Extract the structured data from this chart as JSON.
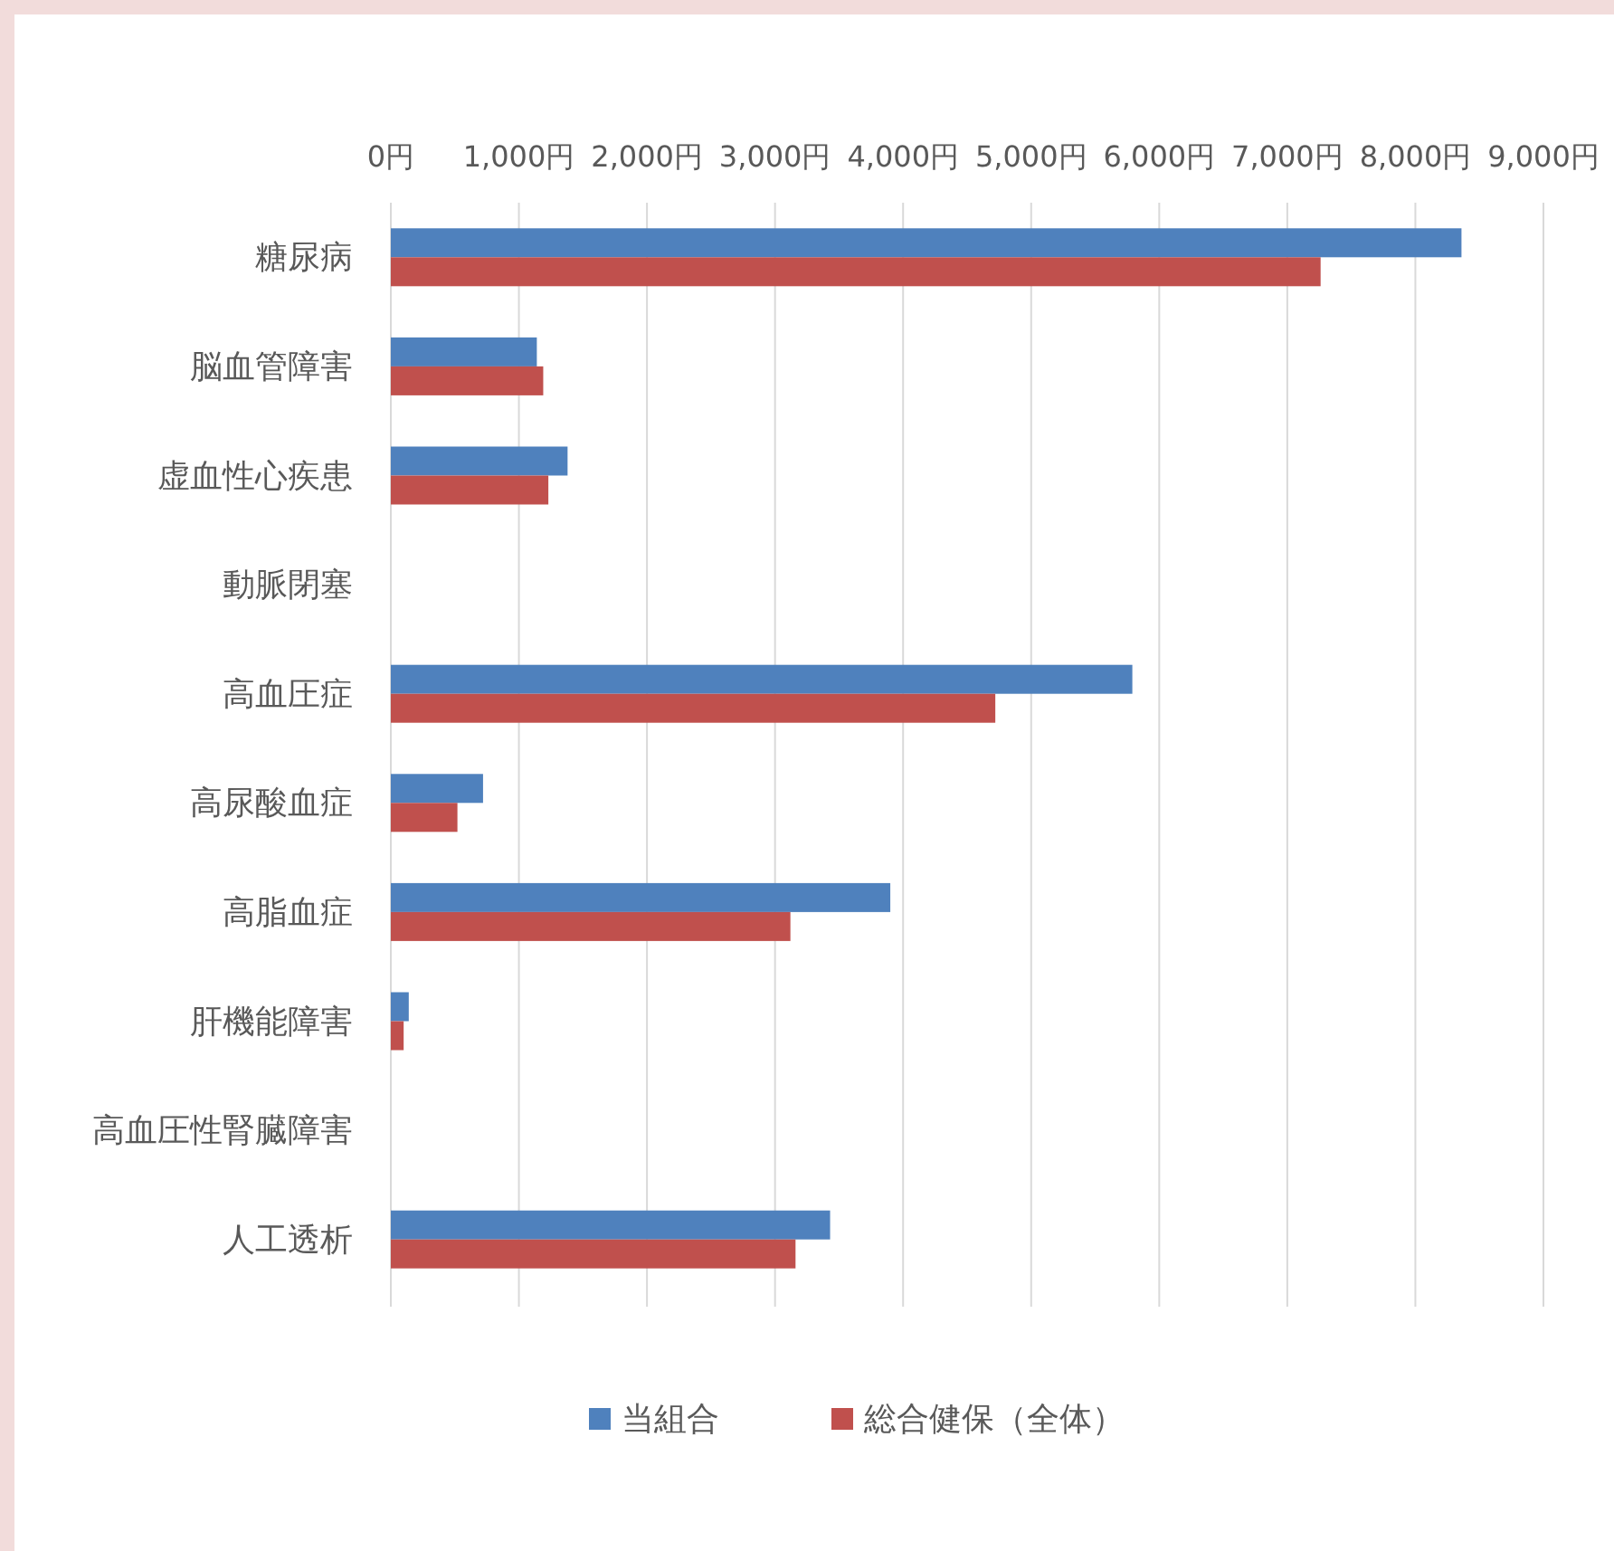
{
  "chart_data": {
    "type": "bar",
    "orientation": "horizontal",
    "categories": [
      "糖尿病",
      "脳血管障害",
      "虚血性心疾患",
      "動脈閉塞",
      "高血圧症",
      "高尿酸血症",
      "高脂血症",
      "肝機能障害",
      "高血圧性腎臓障害",
      "人工透析"
    ],
    "series": [
      {
        "name": "当組合",
        "color": "#4f81bd",
        "values": [
          8360,
          1140,
          1380,
          0,
          5790,
          720,
          3900,
          140,
          0,
          3430
        ]
      },
      {
        "name": "総合健保（全体）",
        "color": "#c0504d",
        "values": [
          7260,
          1190,
          1230,
          0,
          4720,
          520,
          3120,
          100,
          0,
          3160
        ]
      }
    ],
    "xlim": [
      0,
      9000
    ],
    "xticks": [
      {
        "value": 0,
        "label": "0円"
      },
      {
        "value": 1000,
        "label": "1,000円"
      },
      {
        "value": 2000,
        "label": "2,000円"
      },
      {
        "value": 3000,
        "label": "3,000円"
      },
      {
        "value": 4000,
        "label": "4,000円"
      },
      {
        "value": 5000,
        "label": "5,000円"
      },
      {
        "value": 6000,
        "label": "6,000円"
      },
      {
        "value": 7000,
        "label": "7,000円"
      },
      {
        "value": 8000,
        "label": "8,000円"
      },
      {
        "value": 9000,
        "label": "9,000円"
      }
    ],
    "grid": "x",
    "legend": "bottom"
  }
}
